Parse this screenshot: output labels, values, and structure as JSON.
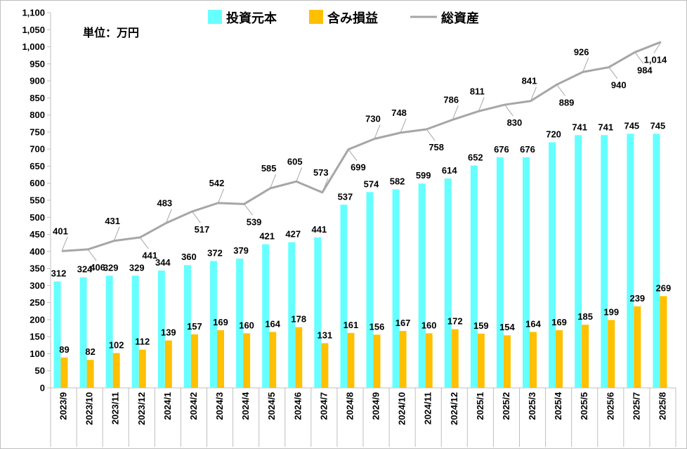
{
  "chart_data": {
    "type": "bar",
    "unit_label": "単位：万円",
    "categories": [
      "2023/9",
      "2023/10",
      "2023/11",
      "2023/12",
      "2024/1",
      "2024/2",
      "2024/3",
      "2024/4",
      "2024/5",
      "2024/6",
      "2024/7",
      "2024/8",
      "2024/9",
      "2024/10",
      "2024/11",
      "2024/12",
      "2025/1",
      "2025/2",
      "2025/3",
      "2025/4",
      "2025/5",
      "2025/6",
      "2025/7",
      "2025/8"
    ],
    "ylim": [
      0,
      1100
    ],
    "yticks": [
      0,
      50,
      100,
      150,
      200,
      250,
      300,
      350,
      400,
      450,
      500,
      550,
      600,
      650,
      700,
      750,
      800,
      850,
      900,
      950,
      1000,
      1050,
      1100
    ],
    "ytick_labels": [
      "0",
      "50",
      "100",
      "150",
      "200",
      "250",
      "300",
      "350",
      "400",
      "450",
      "500",
      "550",
      "600",
      "650",
      "700",
      "750",
      "800",
      "850",
      "900",
      "950",
      "1,000",
      "1,050",
      "1,100"
    ],
    "legend_position": "top",
    "grid": false,
    "series": [
      {
        "name": "投資元本",
        "type": "bar",
        "color": "#66FFFF",
        "values": [
          312,
          324,
          329,
          329,
          344,
          360,
          372,
          379,
          421,
          427,
          441,
          537,
          574,
          582,
          599,
          614,
          652,
          676,
          676,
          720,
          741,
          741,
          745,
          745
        ],
        "labels": [
          "312",
          "324",
          "329",
          "329",
          "344",
          "360",
          "372",
          "379",
          "421",
          "427",
          "441",
          "537",
          "574",
          "582",
          "599",
          "614",
          "652",
          "676",
          "676",
          "720",
          "741",
          "741",
          "745",
          "745"
        ]
      },
      {
        "name": "含み損益",
        "type": "bar",
        "color": "#FFC000",
        "values": [
          89,
          82,
          102,
          112,
          139,
          157,
          169,
          160,
          164,
          178,
          131,
          161,
          156,
          167,
          160,
          172,
          159,
          154,
          164,
          169,
          185,
          199,
          239,
          269
        ],
        "labels": [
          "89",
          "82",
          "102",
          "112",
          "139",
          "157",
          "169",
          "160",
          "164",
          "178",
          "131",
          "161",
          "156",
          "167",
          "160",
          "172",
          "159",
          "154",
          "164",
          "169",
          "185",
          "199",
          "239",
          "269"
        ]
      },
      {
        "name": "総資産",
        "type": "line",
        "color": "#A6A6A6",
        "values": [
          401,
          406,
          431,
          441,
          483,
          517,
          542,
          539,
          585,
          605,
          573,
          699,
          730,
          748,
          758,
          786,
          811,
          830,
          841,
          889,
          926,
          940,
          984,
          1014
        ],
        "labels": [
          "401",
          "406",
          "431",
          "441",
          "483",
          "517",
          "542",
          "539",
          "585",
          "605",
          "573",
          "699",
          "730",
          "748",
          "758",
          "786",
          "811",
          "830",
          "841",
          "889",
          "926",
          "940",
          "984",
          "1,014"
        ]
      }
    ]
  }
}
